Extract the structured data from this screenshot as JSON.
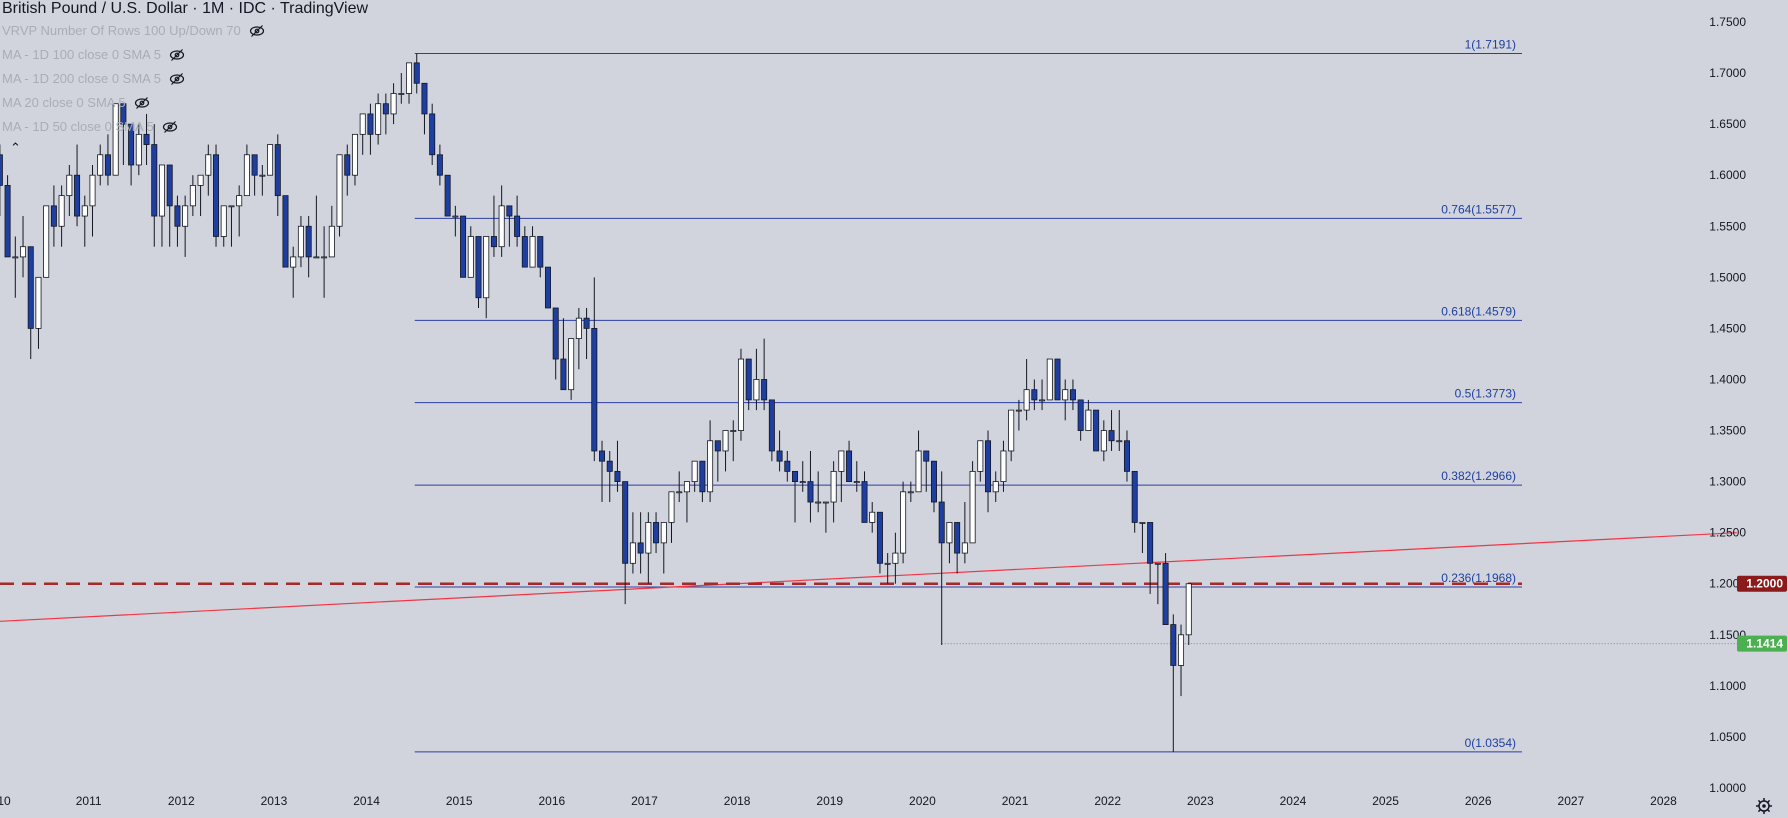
{
  "header": {
    "title": "British Pound / U.S. Dollar · 1M · IDC · TradingView",
    "indicators": [
      "VRVP Number Of Rows 100 Up/Down 70",
      "MA - 1D 100 close 0 SMA 5",
      "MA - 1D 200 close 0 SMA 5",
      "MA 20 close 0 SMA 5",
      "MA - 1D 50 close 0 SMA 5"
    ],
    "collapse_icon": "chevron-up-icon",
    "eye_icon": "eye-crossed-icon"
  },
  "colors": {
    "background": "#d1d4dc",
    "up_body": "#ffffff",
    "down_body": "#1e3fa0",
    "wick": "#131722",
    "fib_line": "#2b3fa8",
    "trend_line": "#f23645",
    "dashed_level": "#a52a2a",
    "current_price": "#4caf50"
  },
  "chart_data": {
    "type": "candlestick",
    "title": "British Pound / U.S. Dollar · 1M · IDC · TradingView",
    "x_axis": {
      "type": "date",
      "tick_labels": [
        "10",
        "2011",
        "2012",
        "2013",
        "2014",
        "2015",
        "2016",
        "2017",
        "2018",
        "2019",
        "2020",
        "2021",
        "2022",
        "2023",
        "2024",
        "2025",
        "2026",
        "2027",
        "2028"
      ],
      "range": [
        "2010-01",
        "2028-12"
      ]
    },
    "y_axis": {
      "position": "right",
      "range": [
        1.0,
        1.75
      ],
      "tick_labels": [
        "1.7500",
        "1.7000",
        "1.6500",
        "1.6000",
        "1.5500",
        "1.5000",
        "1.4500",
        "1.4000",
        "1.3500",
        "1.3000",
        "1.2500",
        "1.2000",
        "1.1500",
        "1.1000",
        "1.0500",
        "1.0000"
      ]
    },
    "grid": false,
    "fibonacci": {
      "start": "2014-07",
      "levels": [
        {
          "ratio": "1",
          "price": 1.7191,
          "label": "1(1.7191)"
        },
        {
          "ratio": "0.764",
          "price": 1.5577,
          "label": "0.764(1.5577)"
        },
        {
          "ratio": "0.618",
          "price": 1.4579,
          "label": "0.618(1.4579)"
        },
        {
          "ratio": "0.5",
          "price": 1.3773,
          "label": "0.5(1.3773)"
        },
        {
          "ratio": "0.382",
          "price": 1.2966,
          "label": "0.382(1.2966)"
        },
        {
          "ratio": "0.236",
          "price": 1.1968,
          "label": "0.236(1.1968)"
        },
        {
          "ratio": "0",
          "price": 1.0354,
          "label": "0(1.0354)"
        }
      ]
    },
    "trendline": {
      "from": {
        "date": "2010-01",
        "price": 1.163
      },
      "to": {
        "date": "2028-10",
        "price": 1.25
      }
    },
    "horizontal_level": {
      "price": 1.2,
      "label": "1.2000",
      "style": "dashed"
    },
    "current_price": {
      "price": 1.1414,
      "label": "1.1414",
      "from": "2020-03"
    },
    "candles": [
      [
        "2010-01",
        1.62,
        1.63,
        1.56,
        1.59
      ],
      [
        "2010-02",
        1.59,
        1.6,
        1.52,
        1.52
      ],
      [
        "2010-03",
        1.52,
        1.54,
        1.48,
        1.52
      ],
      [
        "2010-04",
        1.52,
        1.56,
        1.5,
        1.53
      ],
      [
        "2010-05",
        1.53,
        1.53,
        1.42,
        1.45
      ],
      [
        "2010-06",
        1.45,
        1.5,
        1.43,
        1.5
      ],
      [
        "2010-07",
        1.5,
        1.57,
        1.5,
        1.57
      ],
      [
        "2010-08",
        1.57,
        1.59,
        1.53,
        1.55
      ],
      [
        "2010-09",
        1.55,
        1.59,
        1.53,
        1.58
      ],
      [
        "2010-10",
        1.58,
        1.61,
        1.56,
        1.6
      ],
      [
        "2010-11",
        1.6,
        1.63,
        1.55,
        1.56
      ],
      [
        "2010-12",
        1.56,
        1.58,
        1.53,
        1.57
      ],
      [
        "2011-01",
        1.57,
        1.61,
        1.54,
        1.6
      ],
      [
        "2011-02",
        1.6,
        1.63,
        1.59,
        1.62
      ],
      [
        "2011-03",
        1.62,
        1.64,
        1.59,
        1.6
      ],
      [
        "2011-04",
        1.6,
        1.67,
        1.6,
        1.67
      ],
      [
        "2011-05",
        1.67,
        1.67,
        1.61,
        1.65
      ],
      [
        "2011-06",
        1.65,
        1.65,
        1.59,
        1.61
      ],
      [
        "2011-07",
        1.61,
        1.65,
        1.6,
        1.64
      ],
      [
        "2011-08",
        1.64,
        1.66,
        1.61,
        1.63
      ],
      [
        "2011-09",
        1.63,
        1.65,
        1.53,
        1.56
      ],
      [
        "2011-10",
        1.56,
        1.61,
        1.53,
        1.61
      ],
      [
        "2011-11",
        1.61,
        1.61,
        1.53,
        1.57
      ],
      [
        "2011-12",
        1.57,
        1.58,
        1.53,
        1.55
      ],
      [
        "2012-01",
        1.55,
        1.58,
        1.52,
        1.57
      ],
      [
        "2012-02",
        1.57,
        1.6,
        1.56,
        1.59
      ],
      [
        "2012-03",
        1.59,
        1.6,
        1.56,
        1.6
      ],
      [
        "2012-04",
        1.6,
        1.63,
        1.58,
        1.62
      ],
      [
        "2012-05",
        1.62,
        1.63,
        1.53,
        1.54
      ],
      [
        "2012-06",
        1.54,
        1.57,
        1.53,
        1.57
      ],
      [
        "2012-07",
        1.57,
        1.57,
        1.53,
        1.57
      ],
      [
        "2012-08",
        1.57,
        1.59,
        1.54,
        1.58
      ],
      [
        "2012-09",
        1.58,
        1.63,
        1.58,
        1.62
      ],
      [
        "2012-10",
        1.62,
        1.62,
        1.58,
        1.6
      ],
      [
        "2012-11",
        1.6,
        1.61,
        1.58,
        1.6
      ],
      [
        "2012-12",
        1.6,
        1.63,
        1.6,
        1.63
      ],
      [
        "2013-01",
        1.63,
        1.64,
        1.56,
        1.58
      ],
      [
        "2013-02",
        1.58,
        1.58,
        1.51,
        1.51
      ],
      [
        "2013-03",
        1.51,
        1.53,
        1.48,
        1.52
      ],
      [
        "2013-04",
        1.52,
        1.56,
        1.51,
        1.55
      ],
      [
        "2013-05",
        1.55,
        1.56,
        1.5,
        1.52
      ],
      [
        "2013-06",
        1.52,
        1.58,
        1.52,
        1.52
      ],
      [
        "2013-07",
        1.52,
        1.55,
        1.48,
        1.52
      ],
      [
        "2013-08",
        1.52,
        1.57,
        1.52,
        1.55
      ],
      [
        "2013-09",
        1.55,
        1.62,
        1.54,
        1.62
      ],
      [
        "2013-10",
        1.62,
        1.63,
        1.58,
        1.6
      ],
      [
        "2013-11",
        1.6,
        1.64,
        1.59,
        1.64
      ],
      [
        "2013-12",
        1.64,
        1.66,
        1.62,
        1.66
      ],
      [
        "2014-01",
        1.66,
        1.67,
        1.62,
        1.64
      ],
      [
        "2014-02",
        1.64,
        1.68,
        1.63,
        1.67
      ],
      [
        "2014-03",
        1.67,
        1.68,
        1.64,
        1.66
      ],
      [
        "2014-04",
        1.66,
        1.69,
        1.65,
        1.68
      ],
      [
        "2014-05",
        1.68,
        1.7,
        1.67,
        1.68
      ],
      [
        "2014-06",
        1.68,
        1.71,
        1.67,
        1.71
      ],
      [
        "2014-07",
        1.71,
        1.7191,
        1.68,
        1.69
      ],
      [
        "2014-08",
        1.69,
        1.69,
        1.64,
        1.66
      ],
      [
        "2014-09",
        1.66,
        1.67,
        1.61,
        1.62
      ],
      [
        "2014-10",
        1.62,
        1.63,
        1.59,
        1.6
      ],
      [
        "2014-11",
        1.6,
        1.6,
        1.56,
        1.56
      ],
      [
        "2014-12",
        1.56,
        1.57,
        1.54,
        1.56
      ],
      [
        "2015-01",
        1.56,
        1.56,
        1.5,
        1.5
      ],
      [
        "2015-02",
        1.5,
        1.55,
        1.5,
        1.54
      ],
      [
        "2015-03",
        1.54,
        1.54,
        1.47,
        1.48
      ],
      [
        "2015-04",
        1.48,
        1.54,
        1.46,
        1.54
      ],
      [
        "2015-05",
        1.54,
        1.58,
        1.52,
        1.53
      ],
      [
        "2015-06",
        1.53,
        1.59,
        1.52,
        1.57
      ],
      [
        "2015-07",
        1.57,
        1.57,
        1.53,
        1.56
      ],
      [
        "2015-08",
        1.56,
        1.58,
        1.53,
        1.54
      ],
      [
        "2015-09",
        1.54,
        1.55,
        1.51,
        1.51
      ],
      [
        "2015-10",
        1.51,
        1.55,
        1.51,
        1.54
      ],
      [
        "2015-11",
        1.54,
        1.54,
        1.5,
        1.51
      ],
      [
        "2015-12",
        1.51,
        1.51,
        1.47,
        1.47
      ],
      [
        "2016-01",
        1.47,
        1.47,
        1.4,
        1.42
      ],
      [
        "2016-02",
        1.42,
        1.46,
        1.39,
        1.39
      ],
      [
        "2016-03",
        1.39,
        1.44,
        1.38,
        1.44
      ],
      [
        "2016-04",
        1.44,
        1.47,
        1.41,
        1.46
      ],
      [
        "2016-05",
        1.46,
        1.47,
        1.42,
        1.45
      ],
      [
        "2016-06",
        1.45,
        1.5,
        1.32,
        1.33
      ],
      [
        "2016-07",
        1.33,
        1.34,
        1.28,
        1.32
      ],
      [
        "2016-08",
        1.32,
        1.33,
        1.28,
        1.31
      ],
      [
        "2016-09",
        1.31,
        1.34,
        1.29,
        1.3
      ],
      [
        "2016-10",
        1.3,
        1.3,
        1.18,
        1.22
      ],
      [
        "2016-11",
        1.22,
        1.27,
        1.21,
        1.24
      ],
      [
        "2016-12",
        1.24,
        1.27,
        1.21,
        1.23
      ],
      [
        "2017-01",
        1.23,
        1.27,
        1.2,
        1.26
      ],
      [
        "2017-02",
        1.26,
        1.27,
        1.23,
        1.24
      ],
      [
        "2017-03",
        1.24,
        1.26,
        1.21,
        1.26
      ],
      [
        "2017-04",
        1.26,
        1.29,
        1.24,
        1.29
      ],
      [
        "2017-05",
        1.29,
        1.31,
        1.28,
        1.29
      ],
      [
        "2017-06",
        1.29,
        1.3,
        1.26,
        1.3
      ],
      [
        "2017-07",
        1.3,
        1.32,
        1.29,
        1.32
      ],
      [
        "2017-08",
        1.32,
        1.32,
        1.28,
        1.29
      ],
      [
        "2017-09",
        1.29,
        1.36,
        1.28,
        1.34
      ],
      [
        "2017-10",
        1.34,
        1.34,
        1.3,
        1.33
      ],
      [
        "2017-11",
        1.33,
        1.35,
        1.31,
        1.35
      ],
      [
        "2017-12",
        1.35,
        1.36,
        1.32,
        1.35
      ],
      [
        "2018-01",
        1.35,
        1.43,
        1.34,
        1.42
      ],
      [
        "2018-02",
        1.42,
        1.42,
        1.37,
        1.38
      ],
      [
        "2018-03",
        1.38,
        1.43,
        1.37,
        1.4
      ],
      [
        "2018-04",
        1.4,
        1.44,
        1.37,
        1.38
      ],
      [
        "2018-05",
        1.38,
        1.38,
        1.32,
        1.33
      ],
      [
        "2018-06",
        1.33,
        1.35,
        1.31,
        1.32
      ],
      [
        "2018-07",
        1.32,
        1.33,
        1.3,
        1.31
      ],
      [
        "2018-08",
        1.31,
        1.31,
        1.26,
        1.3
      ],
      [
        "2018-09",
        1.3,
        1.32,
        1.29,
        1.3
      ],
      [
        "2018-10",
        1.3,
        1.33,
        1.26,
        1.28
      ],
      [
        "2018-11",
        1.28,
        1.31,
        1.27,
        1.28
      ],
      [
        "2018-12",
        1.28,
        1.28,
        1.25,
        1.28
      ],
      [
        "2019-01",
        1.28,
        1.32,
        1.26,
        1.31
      ],
      [
        "2019-02",
        1.31,
        1.33,
        1.28,
        1.33
      ],
      [
        "2019-03",
        1.33,
        1.34,
        1.3,
        1.3
      ],
      [
        "2019-04",
        1.3,
        1.32,
        1.29,
        1.3
      ],
      [
        "2019-05",
        1.3,
        1.31,
        1.26,
        1.26
      ],
      [
        "2019-06",
        1.26,
        1.28,
        1.25,
        1.27
      ],
      [
        "2019-07",
        1.27,
        1.27,
        1.21,
        1.22
      ],
      [
        "2019-08",
        1.22,
        1.23,
        1.2,
        1.22
      ],
      [
        "2019-09",
        1.22,
        1.25,
        1.2,
        1.23
      ],
      [
        "2019-10",
        1.23,
        1.3,
        1.22,
        1.29
      ],
      [
        "2019-11",
        1.29,
        1.3,
        1.28,
        1.29
      ],
      [
        "2019-12",
        1.29,
        1.35,
        1.29,
        1.33
      ],
      [
        "2020-01",
        1.33,
        1.33,
        1.29,
        1.32
      ],
      [
        "2020-02",
        1.32,
        1.32,
        1.27,
        1.28
      ],
      [
        "2020-03",
        1.28,
        1.31,
        1.14,
        1.24
      ],
      [
        "2020-04",
        1.24,
        1.26,
        1.22,
        1.26
      ],
      [
        "2020-05",
        1.26,
        1.26,
        1.21,
        1.23
      ],
      [
        "2020-06",
        1.23,
        1.28,
        1.22,
        1.24
      ],
      [
        "2020-07",
        1.24,
        1.32,
        1.24,
        1.31
      ],
      [
        "2020-08",
        1.31,
        1.34,
        1.3,
        1.34
      ],
      [
        "2020-09",
        1.34,
        1.35,
        1.27,
        1.29
      ],
      [
        "2020-10",
        1.29,
        1.31,
        1.28,
        1.3
      ],
      [
        "2020-11",
        1.3,
        1.34,
        1.29,
        1.33
      ],
      [
        "2020-12",
        1.33,
        1.37,
        1.32,
        1.37
      ],
      [
        "2021-01",
        1.37,
        1.38,
        1.35,
        1.37
      ],
      [
        "2021-02",
        1.37,
        1.42,
        1.36,
        1.39
      ],
      [
        "2021-03",
        1.39,
        1.4,
        1.37,
        1.38
      ],
      [
        "2021-04",
        1.38,
        1.4,
        1.37,
        1.38
      ],
      [
        "2021-05",
        1.38,
        1.42,
        1.38,
        1.42
      ],
      [
        "2021-06",
        1.42,
        1.42,
        1.38,
        1.38
      ],
      [
        "2021-07",
        1.38,
        1.4,
        1.36,
        1.39
      ],
      [
        "2021-08",
        1.39,
        1.4,
        1.37,
        1.38
      ],
      [
        "2021-09",
        1.38,
        1.38,
        1.34,
        1.35
      ],
      [
        "2021-10",
        1.35,
        1.38,
        1.35,
        1.37
      ],
      [
        "2021-11",
        1.37,
        1.37,
        1.33,
        1.33
      ],
      [
        "2021-12",
        1.33,
        1.36,
        1.32,
        1.35
      ],
      [
        "2022-01",
        1.35,
        1.37,
        1.33,
        1.34
      ],
      [
        "2022-02",
        1.34,
        1.37,
        1.33,
        1.34
      ],
      [
        "2022-03",
        1.34,
        1.35,
        1.3,
        1.31
      ],
      [
        "2022-04",
        1.31,
        1.31,
        1.25,
        1.26
      ],
      [
        "2022-05",
        1.26,
        1.26,
        1.23,
        1.26
      ],
      [
        "2022-06",
        1.26,
        1.26,
        1.19,
        1.22
      ],
      [
        "2022-07",
        1.22,
        1.22,
        1.18,
        1.22
      ],
      [
        "2022-08",
        1.22,
        1.23,
        1.16,
        1.16
      ],
      [
        "2022-09",
        1.16,
        1.17,
        1.0354,
        1.12
      ],
      [
        "2022-10",
        1.12,
        1.16,
        1.09,
        1.15
      ],
      [
        "2022-11",
        1.15,
        1.2,
        1.14,
        1.2
      ]
    ]
  }
}
